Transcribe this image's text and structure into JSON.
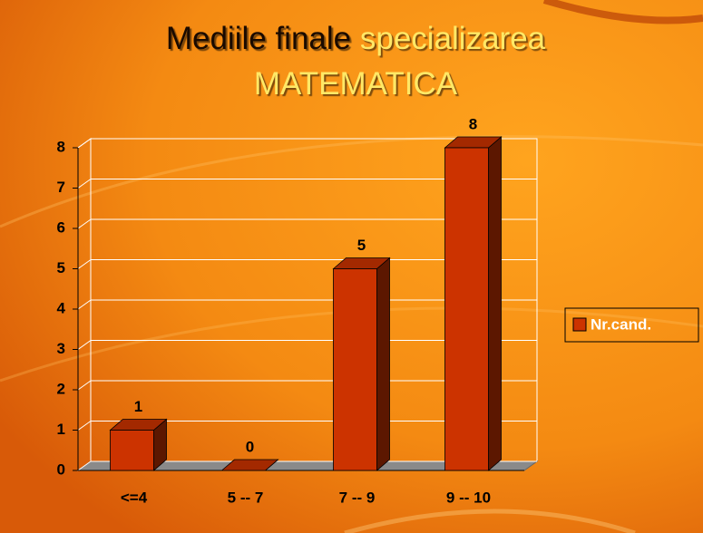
{
  "chart_data": {
    "type": "bar3d",
    "title": [
      "Mediile finale",
      "specializarea",
      "MATEMATICA"
    ],
    "title_colors": [
      "#1a0a00",
      "#ffe866",
      "#ffe866"
    ],
    "categories": [
      "<=4",
      "5 -- 7",
      "7 -- 9",
      "9 -- 10"
    ],
    "series": [
      {
        "name": "Nr.cand.",
        "color": "#cc3300",
        "values": [
          1,
          0,
          5,
          8
        ]
      }
    ],
    "ylim": [
      0,
      8
    ],
    "yticks": [
      0,
      1,
      2,
      3,
      4,
      5,
      6,
      7,
      8
    ],
    "grid": true,
    "legend": "right"
  }
}
